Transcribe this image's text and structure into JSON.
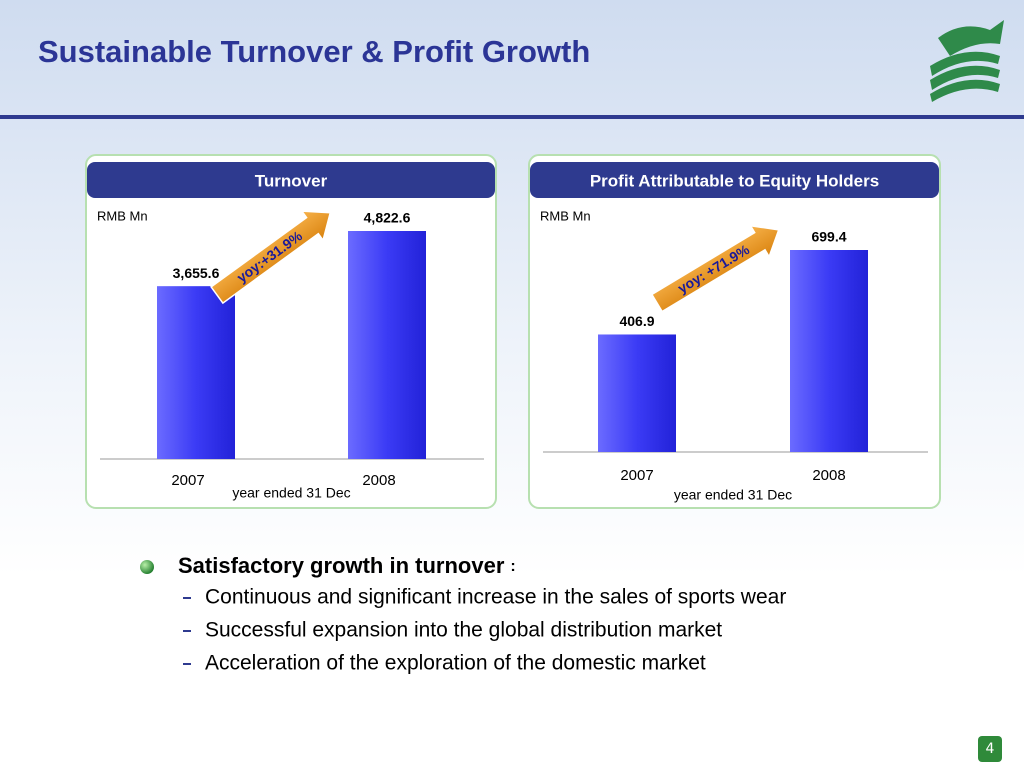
{
  "title": "Sustainable Turnover & Profit Growth",
  "chart_data": [
    {
      "type": "bar",
      "title": "Turnover",
      "unit_label": "RMB Mn",
      "categories": [
        "2007",
        "2008"
      ],
      "values": [
        3655.6,
        4822.6
      ],
      "value_labels": [
        "3,655.6",
        "4,822.6"
      ],
      "annotation": "yoy:+31.9%",
      "xlabel": "year ended 31 Dec",
      "color": "#3b3bf5"
    },
    {
      "type": "bar",
      "title": "Profit Attributable to Equity Holders",
      "unit_label": "RMB Mn",
      "categories": [
        "2007",
        "2008"
      ],
      "values": [
        406.9,
        699.4
      ],
      "annotation": "yoy: +71.9%",
      "xlabel": "year ended 31 Dec",
      "color": "#3b3bf5"
    }
  ],
  "bullets": {
    "heading": "Satisfactory growth in turnover",
    "heading_suffix": ":",
    "items": [
      "Continuous and significant increase in the sales of sports wear",
      "Successful expansion into the global distribution market",
      "Acceleration of the exploration of the domestic market"
    ]
  },
  "page_number": "4"
}
